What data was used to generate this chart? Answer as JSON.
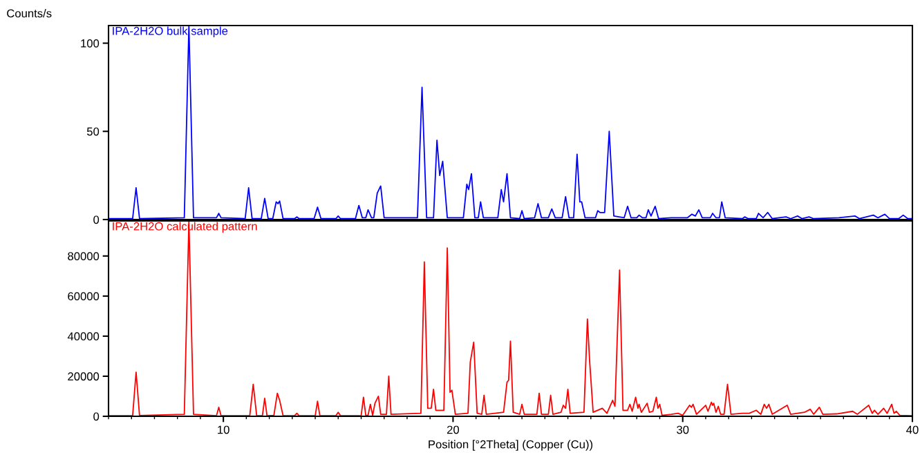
{
  "chart_data": [
    {
      "type": "line",
      "ylabel": "Counts/s",
      "xlim": [
        5,
        40
      ],
      "ylim": [
        0,
        110
      ],
      "yticks": [
        0,
        50,
        100
      ],
      "tick_labels": "y",
      "grid": false,
      "legend": false,
      "marker": "none",
      "line_style": "solid",
      "series": [
        {
          "name": "IPA-2H2O bulk sample",
          "color": "#0000ff",
          "x": [
            5.0,
            6.05,
            6.2,
            6.35,
            8.3,
            8.5,
            8.7,
            9.7,
            9.8,
            9.9,
            10.95,
            11.1,
            11.25,
            11.65,
            11.8,
            11.95,
            12.15,
            12.3,
            12.38,
            12.45,
            12.6,
            13.1,
            13.2,
            13.3,
            13.95,
            14.1,
            14.25,
            14.9,
            15.0,
            15.1,
            15.75,
            15.9,
            16.05,
            16.2,
            16.3,
            16.45,
            16.55,
            16.7,
            16.85,
            17.0,
            18.45,
            18.65,
            18.85,
            19.15,
            19.3,
            19.42,
            19.55,
            19.75,
            20.45,
            20.6,
            20.68,
            20.8,
            20.95,
            21.1,
            21.2,
            21.32,
            21.95,
            22.1,
            22.2,
            22.35,
            22.5,
            22.9,
            23.0,
            23.1,
            23.55,
            23.7,
            23.85,
            24.15,
            24.3,
            24.45,
            24.75,
            24.9,
            25.05,
            25.25,
            25.4,
            25.52,
            25.6,
            25.75,
            26.2,
            26.3,
            26.4,
            26.6,
            26.8,
            27.0,
            27.45,
            27.6,
            27.75,
            28.0,
            28.1,
            28.25,
            28.4,
            28.5,
            28.62,
            28.8,
            28.95,
            29.5,
            30.2,
            30.4,
            30.55,
            30.7,
            30.85,
            31.2,
            31.3,
            31.45,
            31.6,
            31.7,
            31.85,
            32.6,
            32.7,
            32.85,
            33.2,
            33.3,
            33.5,
            33.7,
            33.9,
            34.5,
            34.7,
            35.0,
            35.2,
            35.5,
            35.7,
            36.8,
            37.5,
            37.7,
            38.3,
            38.5,
            38.8,
            39.0,
            39.4,
            39.6,
            39.8,
            40.0
          ],
          "values": [
            0.5,
            0.5,
            18,
            0.5,
            1,
            110,
            1,
            1,
            3.5,
            1,
            0.5,
            18,
            0.5,
            0.5,
            12,
            0.5,
            0.5,
            10,
            9,
            10.5,
            0.5,
            0.5,
            1.5,
            0.5,
            0.5,
            7,
            0.5,
            0.5,
            2,
            0.5,
            0.5,
            8,
            1,
            1,
            5.5,
            1,
            1,
            15,
            19,
            1,
            1,
            75,
            1,
            1,
            45,
            25,
            33,
            1,
            1,
            20,
            17,
            26,
            1,
            1,
            10,
            1,
            1,
            17,
            10,
            26,
            1,
            0.5,
            5,
            0.5,
            1,
            9,
            1,
            1,
            6,
            1,
            1,
            13,
            1,
            1,
            37,
            10,
            10,
            1,
            1,
            5,
            4,
            4,
            50,
            2,
            1,
            7.5,
            1,
            1,
            2.5,
            1,
            1,
            5.5,
            2,
            7.5,
            0.5,
            1,
            1,
            3,
            2,
            5.5,
            1,
            1,
            3.5,
            1,
            1,
            10,
            1,
            0.5,
            1.5,
            0.5,
            0.5,
            3.5,
            1,
            4,
            0.5,
            1.5,
            0.5,
            2,
            0.5,
            1.5,
            0.5,
            1,
            2,
            0.5,
            2.5,
            1,
            3,
            0.5,
            0.5,
            2.5,
            0.5,
            0.5
          ]
        }
      ]
    },
    {
      "type": "line",
      "xlabel": "Position [°2Theta] (Copper (Cu))",
      "xlim": [
        5,
        40
      ],
      "ylim": [
        0,
        97500
      ],
      "yticks": [
        0,
        20000,
        40000,
        60000,
        80000
      ],
      "xticks": [
        {
          "value": 5,
          "label": null
        },
        {
          "value": 6,
          "label": null
        },
        {
          "value": 7,
          "label": null
        },
        {
          "value": 8,
          "label": null
        },
        {
          "value": 9,
          "label": null
        },
        10,
        {
          "value": 11,
          "label": null
        },
        {
          "value": 12,
          "label": null
        },
        {
          "value": 13,
          "label": null
        },
        {
          "value": 14,
          "label": null
        },
        {
          "value": 15,
          "label": null
        },
        {
          "value": 16,
          "label": null
        },
        {
          "value": 17,
          "label": null
        },
        {
          "value": 18,
          "label": null
        },
        {
          "value": 19,
          "label": null
        },
        20,
        {
          "value": 21,
          "label": null
        },
        {
          "value": 22,
          "label": null
        },
        {
          "value": 23,
          "label": null
        },
        {
          "value": 24,
          "label": null
        },
        {
          "value": 25,
          "label": null
        },
        {
          "value": 26,
          "label": null
        },
        {
          "value": 27,
          "label": null
        },
        {
          "value": 28,
          "label": null
        },
        {
          "value": 29,
          "label": null
        },
        30,
        {
          "value": 31,
          "label": null
        },
        {
          "value": 32,
          "label": null
        },
        {
          "value": 33,
          "label": null
        },
        {
          "value": 34,
          "label": null
        },
        {
          "value": 35,
          "label": null
        },
        {
          "value": 36,
          "label": null
        },
        {
          "value": 37,
          "label": null
        },
        {
          "value": 38,
          "label": null
        },
        {
          "value": 39,
          "label": null
        },
        40
      ],
      "grid": false,
      "legend": false,
      "marker": "none",
      "line_style": "solid",
      "series": [
        {
          "name": "IPA-2H2O calculated pattern",
          "color": "#ff0000",
          "x": [
            5.0,
            6.05,
            6.2,
            6.35,
            8.3,
            8.5,
            8.7,
            9.7,
            9.8,
            9.9,
            11.15,
            11.3,
            11.45,
            11.7,
            11.8,
            11.9,
            12.2,
            12.35,
            12.45,
            12.6,
            13.1,
            13.2,
            13.3,
            14.0,
            14.1,
            14.2,
            14.9,
            15.0,
            15.1,
            16.0,
            16.1,
            16.2,
            16.3,
            16.4,
            16.5,
            16.6,
            16.75,
            16.85,
            17.1,
            17.2,
            17.3,
            18.6,
            18.75,
            18.9,
            19.05,
            19.15,
            19.25,
            19.45,
            19.6,
            19.75,
            19.87,
            19.95,
            20.1,
            20.65,
            20.75,
            20.9,
            21.05,
            21.25,
            21.35,
            21.45,
            22.2,
            22.35,
            22.42,
            22.5,
            22.62,
            22.9,
            23.0,
            23.1,
            23.65,
            23.75,
            23.85,
            24.15,
            24.25,
            24.35,
            24.7,
            24.8,
            24.9,
            25.0,
            25.1,
            25.7,
            25.85,
            25.95,
            26.1,
            26.5,
            26.7,
            26.95,
            27.05,
            27.25,
            27.4,
            27.6,
            27.7,
            27.8,
            27.95,
            28.05,
            28.1,
            28.2,
            28.45,
            28.55,
            28.7,
            28.85,
            28.92,
            29.0,
            29.1,
            29.5,
            29.8,
            30.0,
            30.3,
            30.38,
            30.45,
            30.6,
            31.0,
            31.1,
            31.25,
            31.3,
            31.35,
            31.45,
            31.55,
            31.65,
            31.8,
            31.95,
            32.1,
            32.6,
            32.9,
            33.2,
            33.4,
            33.55,
            33.65,
            33.75,
            33.9,
            34.55,
            34.7,
            35.3,
            35.55,
            35.7,
            35.95,
            36.1,
            36.7,
            37.4,
            37.6,
            38.1,
            38.25,
            38.35,
            38.5,
            38.75,
            38.9,
            39.1,
            39.2,
            39.3,
            39.45,
            40.0
          ],
          "values": [
            300,
            300,
            22000,
            400,
            1000,
            97500,
            1000,
            300,
            4500,
            300,
            300,
            16000,
            300,
            300,
            9000,
            300,
            500,
            11500,
            8000,
            300,
            300,
            1500,
            300,
            300,
            7500,
            300,
            300,
            2000,
            300,
            300,
            9500,
            500,
            500,
            6000,
            500,
            6500,
            10000,
            1000,
            1000,
            20000,
            1000,
            1500,
            77000,
            4000,
            4000,
            13500,
            3000,
            3000,
            3000,
            84000,
            12000,
            13000,
            1000,
            1500,
            27000,
            37000,
            1500,
            1000,
            10500,
            1000,
            2000,
            17000,
            18000,
            37500,
            2000,
            1000,
            6000,
            1000,
            1000,
            11500,
            1000,
            1000,
            10500,
            1000,
            2000,
            5500,
            4000,
            13500,
            1500,
            2000,
            48500,
            27000,
            2000,
            4000,
            1500,
            8000,
            5000,
            73000,
            3000,
            3000,
            6000,
            2500,
            9500,
            4000,
            6000,
            2000,
            6500,
            2000,
            2500,
            9500,
            4000,
            6000,
            500,
            1000,
            1500,
            500,
            5500,
            4500,
            6000,
            1000,
            5500,
            2500,
            7000,
            5500,
            6500,
            2000,
            5000,
            1000,
            1000,
            16000,
            1000,
            1500,
            1500,
            3000,
            1000,
            6000,
            4000,
            6000,
            1000,
            5500,
            1000,
            2000,
            3500,
            1000,
            4500,
            1000,
            1200,
            2500,
            1000,
            5500,
            1500,
            3000,
            1000,
            4000,
            1500,
            6000,
            1500,
            2500,
            500,
            300
          ]
        }
      ]
    }
  ]
}
